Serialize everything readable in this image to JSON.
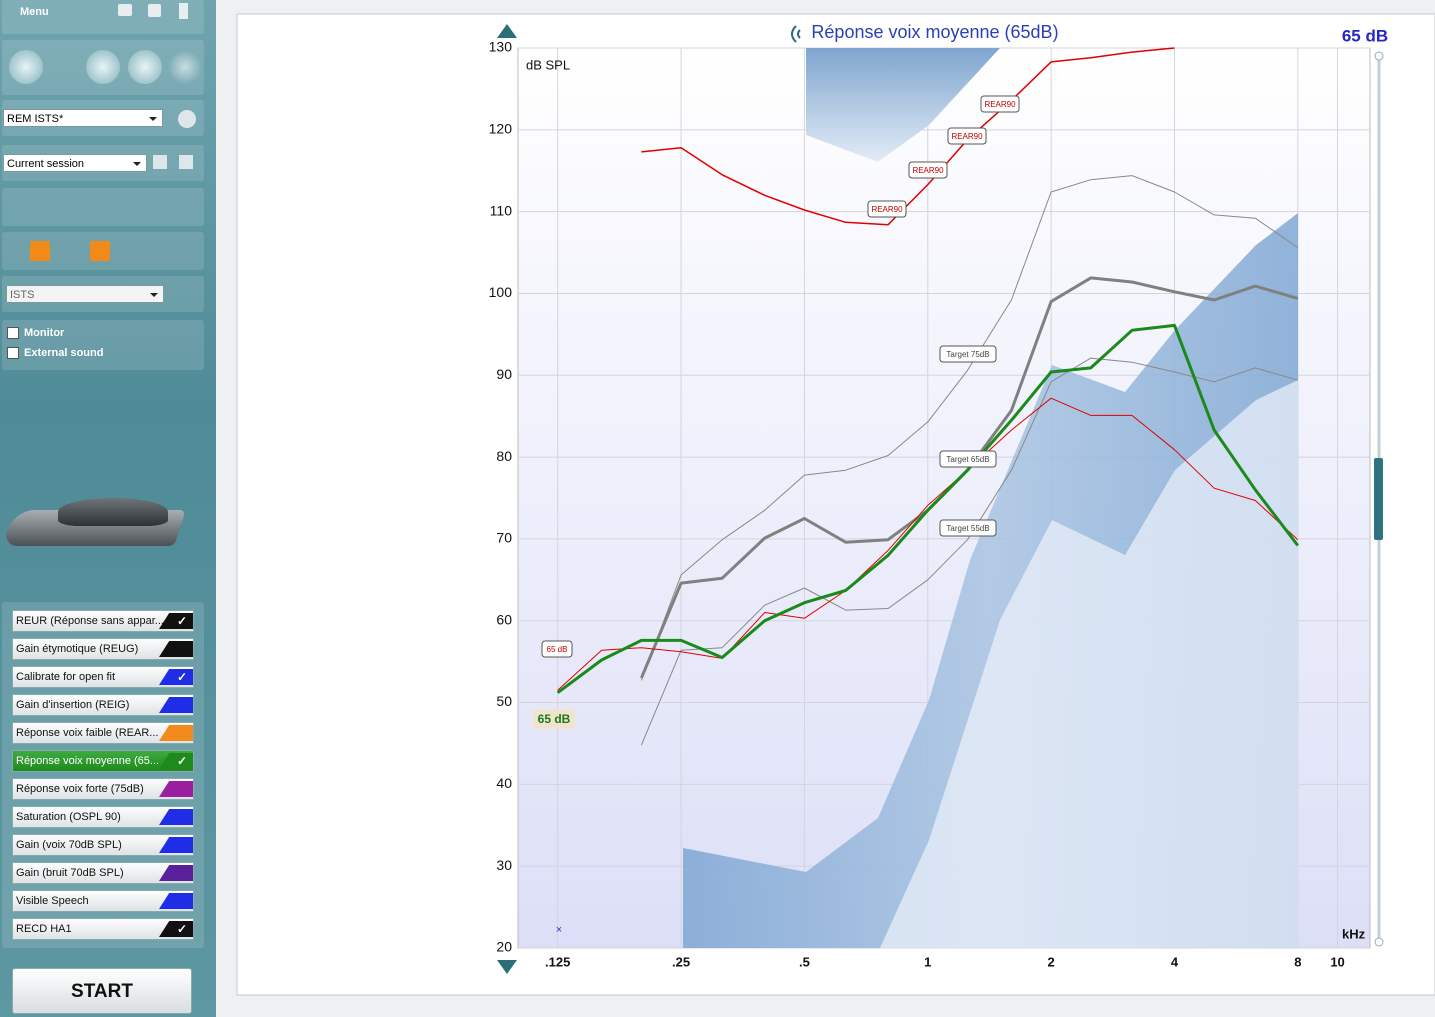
{
  "sidebar": {
    "menu": "Menu",
    "protocol": "REM ISTS*",
    "session": "Current session",
    "signal": "ISTS",
    "checkboxes": [
      "Monitor",
      "External sound"
    ],
    "items": [
      {
        "label": "REUR (Réponse sans appar...",
        "color": "#111111",
        "checked": true,
        "selected": false
      },
      {
        "label": "Gain étymotique (REUG)",
        "color": "#111111",
        "checked": false,
        "selected": false
      },
      {
        "label": "Calibrate for open fit",
        "color": "#1f2ee6",
        "checked": true,
        "selected": false
      },
      {
        "label": "Gain d'insertion (REIG)",
        "color": "#1f2ee6",
        "checked": false,
        "selected": false
      },
      {
        "label": "Réponse voix faible (REAR...",
        "color": "#f08a1c",
        "checked": false,
        "selected": false
      },
      {
        "label": "Réponse voix moyenne (65...",
        "color": "#1e8a1e",
        "checked": true,
        "selected": true
      },
      {
        "label": "Réponse voix forte (75dB)",
        "color": "#9a1fa0",
        "checked": false,
        "selected": false
      },
      {
        "label": "Saturation (OSPL 90)",
        "color": "#1f2ee6",
        "checked": false,
        "selected": false
      },
      {
        "label": "Gain (voix 70dB SPL)",
        "color": "#1f2ee6",
        "checked": false,
        "selected": false
      },
      {
        "label": "Gain (bruit 70dB SPL)",
        "color": "#5a1f9a",
        "checked": false,
        "selected": false
      },
      {
        "label": "Visible Speech",
        "color": "#1f2ee6",
        "checked": false,
        "selected": false
      },
      {
        "label": "RECD HA1",
        "color": "#111111",
        "checked": true,
        "selected": false
      }
    ],
    "start": "START"
  },
  "chart_data": {
    "type": "line",
    "title": "Réponse voix moyenne (65dB)",
    "level": "65 dB",
    "ylabel": "dB SPL",
    "xlabel": "kHz",
    "log_x": true,
    "grid": true,
    "xlim": [
      0.1,
      12
    ],
    "ylim": [
      20,
      130
    ],
    "xticks": [
      {
        "value": 0.125,
        "label": ".125"
      },
      {
        "value": 0.25,
        "label": ".25"
      },
      {
        "value": 0.5,
        "label": ".5"
      },
      1,
      2,
      4,
      8,
      10
    ],
    "yticks": [
      20,
      30,
      40,
      50,
      60,
      70,
      80,
      90,
      100,
      110,
      120,
      130
    ],
    "x": [
      0.125,
      0.16,
      0.2,
      0.25,
      0.315,
      0.4,
      0.5,
      0.63,
      0.8,
      1,
      1.25,
      1.6,
      2,
      2.5,
      3.15,
      4,
      5,
      6.3,
      8
    ],
    "series": [
      {
        "color": "#888888",
        "width": 1,
        "values": [
          null,
          null,
          52.7,
          65.6,
          69.9,
          73.5,
          77.8,
          78.4,
          80.2,
          84.3,
          90.6,
          99.2,
          112.4,
          113.9,
          114.4,
          112.4,
          109.6,
          109.2,
          105.6
        ]
      },
      {
        "color": "#888888",
        "width": 1,
        "values": [
          null,
          null,
          44.8,
          56.4,
          56.7,
          61.9,
          64,
          61.3,
          61.5,
          65,
          69.9,
          78.4,
          89.2,
          92.1,
          91.6,
          90.4,
          89.2,
          90.9,
          89.4
        ]
      },
      {
        "color": "#808080",
        "width": 3,
        "values": [
          null,
          null,
          53,
          64.6,
          65.2,
          70.1,
          72.5,
          69.6,
          69.9,
          73.5,
          78.4,
          85.7,
          99,
          101.9,
          101.4,
          100.2,
          99.2,
          100.9,
          99.4
        ]
      },
      {
        "color": "#e00000",
        "width": 1.5,
        "values": [
          null,
          null,
          117.3,
          117.8,
          114.5,
          112,
          110.2,
          108.7,
          108.4,
          113.3,
          118.8,
          123.6,
          128.3,
          128.8,
          129.5,
          130,
          null,
          null,
          null
        ]
      },
      {
        "color": "#e00000",
        "width": 1,
        "values": [
          51.5,
          56.4,
          56.7,
          56.2,
          55.4,
          61,
          60.3,
          63.7,
          68.6,
          74.1,
          78.4,
          83.3,
          87.2,
          85.1,
          85.1,
          80.9,
          76.2,
          74.7,
          69.9
        ]
      },
      {
        "color": "#1a8a1a",
        "width": 3,
        "values": [
          51.2,
          55.2,
          57.6,
          57.6,
          55.5,
          60,
          62.2,
          63.7,
          68,
          73.5,
          78.4,
          84.5,
          90.4,
          90.9,
          95.5,
          96.1,
          83.3,
          76,
          69.2
        ]
      }
    ],
    "annotations": [
      "REAR90",
      "REAR90",
      "REAR90",
      "REAR90",
      "Target 75dB",
      "Target 65dB",
      "Target 55dB",
      "65 dB",
      "65 dB"
    ]
  }
}
